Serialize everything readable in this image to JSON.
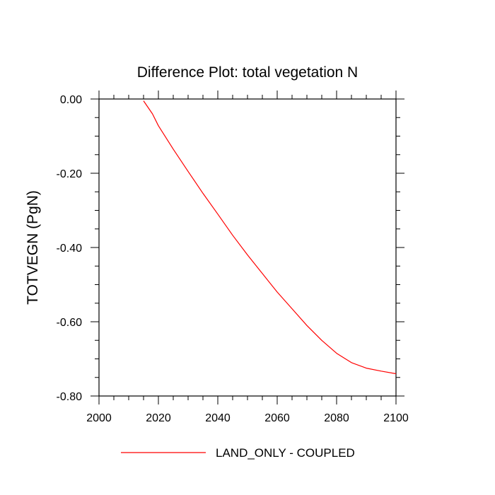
{
  "chart_data": {
    "type": "line",
    "title": "Difference Plot: total vegetation N",
    "xlabel": "",
    "ylabel": "TOTVEGN  (PgN)",
    "xlim": [
      2000,
      2100
    ],
    "ylim": [
      -0.8,
      0.0
    ],
    "x_ticks": [
      2000,
      2020,
      2040,
      2060,
      2080,
      2100
    ],
    "x_tick_labels": [
      "2000",
      "2020",
      "2040",
      "2060",
      "2080",
      "2100"
    ],
    "y_ticks": [
      0.0,
      -0.2,
      -0.4,
      -0.6,
      -0.8
    ],
    "y_tick_labels": [
      "0.00",
      "-0.20",
      "-0.40",
      "-0.60",
      "-0.80"
    ],
    "grid": false,
    "legend_position": "bottom",
    "series": [
      {
        "name": "LAND_ONLY - COUPLED",
        "color": "#ff0000",
        "x": [
          2015,
          2018,
          2020,
          2025,
          2030,
          2035,
          2040,
          2045,
          2050,
          2055,
          2060,
          2065,
          2070,
          2075,
          2080,
          2085,
          2090,
          2095,
          2100
        ],
        "y": [
          -0.005,
          -0.04,
          -0.072,
          -0.135,
          -0.195,
          -0.254,
          -0.31,
          -0.367,
          -0.42,
          -0.47,
          -0.52,
          -0.565,
          -0.61,
          -0.65,
          -0.685,
          -0.71,
          -0.725,
          -0.733,
          -0.74
        ]
      }
    ]
  }
}
